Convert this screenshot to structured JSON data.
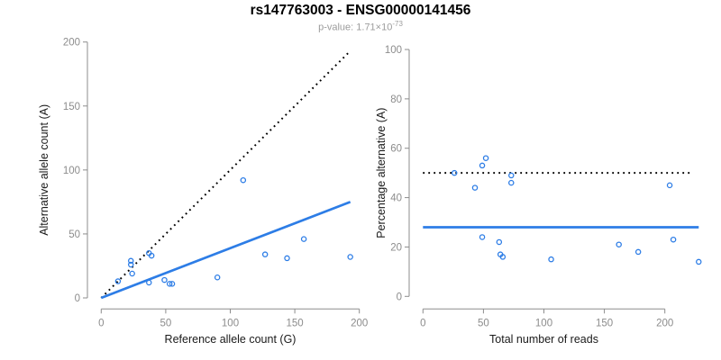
{
  "header": {
    "title": "rs147763003 - ENSG00000141456",
    "subtitle_prefix": "p-value: 1.71×10",
    "subtitle_exponent": "-73"
  },
  "colors": {
    "accent_blue": "#2D7DE6",
    "axis_gray": "#8c8c8c",
    "text_black": "#1a1a1a",
    "subtitle_gray": "#9c9c9c",
    "dotted_line_black": "#000000"
  },
  "chart_data": [
    {
      "type": "scatter",
      "xlabel": "Reference allele count (G)",
      "ylabel": "Alternative allele count (A)",
      "xlim": [
        0,
        200
      ],
      "ylim": [
        0,
        200
      ],
      "xticks": [
        0,
        50,
        100,
        150,
        200
      ],
      "yticks": [
        0,
        50,
        100,
        150,
        200
      ],
      "grid": false,
      "legend": null,
      "point_color": "#2D7DE6",
      "points": [
        [
          13,
          13
        ],
        [
          23,
          26
        ],
        [
          23,
          29
        ],
        [
          24,
          19
        ],
        [
          37,
          12
        ],
        [
          37,
          35
        ],
        [
          39,
          33
        ],
        [
          49,
          14
        ],
        [
          53,
          11
        ],
        [
          55,
          11
        ],
        [
          90,
          16
        ],
        [
          110,
          92
        ],
        [
          127,
          34
        ],
        [
          144,
          31
        ],
        [
          157,
          46
        ],
        [
          193,
          32
        ]
      ],
      "lines": [
        {
          "name": "identity-line",
          "style": "dotted",
          "color": "#000000",
          "from": [
            0,
            0
          ],
          "to": [
            193,
            193
          ]
        },
        {
          "name": "fit-line",
          "style": "solid",
          "color": "#2D7DE6",
          "from": [
            0,
            0
          ],
          "to": [
            193,
            75
          ]
        }
      ]
    },
    {
      "type": "scatter",
      "xlabel": "Total number of reads",
      "ylabel": "Percentage alternative (A)",
      "xlim": [
        0,
        230
      ],
      "ylim": [
        0,
        100
      ],
      "xticks": [
        0,
        50,
        100,
        150,
        200
      ],
      "yticks": [
        0,
        20,
        40,
        60,
        80,
        100
      ],
      "grid": false,
      "legend": null,
      "point_color": "#2D7DE6",
      "points": [
        [
          26,
          50
        ],
        [
          43,
          44
        ],
        [
          49,
          24
        ],
        [
          49,
          53
        ],
        [
          52,
          56
        ],
        [
          63,
          22
        ],
        [
          64,
          17
        ],
        [
          66,
          16
        ],
        [
          73,
          46
        ],
        [
          73,
          49
        ],
        [
          106,
          15
        ],
        [
          162,
          21
        ],
        [
          178,
          18
        ],
        [
          204,
          45
        ],
        [
          207,
          23
        ],
        [
          228,
          14
        ]
      ],
      "lines": [
        {
          "name": "expected-50pct-line",
          "style": "dotted",
          "color": "#000000",
          "from": [
            0,
            50
          ],
          "to": [
            222,
            50
          ]
        },
        {
          "name": "mean-pct-line",
          "style": "solid",
          "color": "#2D7DE6",
          "from": [
            0,
            28
          ],
          "to": [
            228,
            28
          ]
        }
      ]
    }
  ]
}
